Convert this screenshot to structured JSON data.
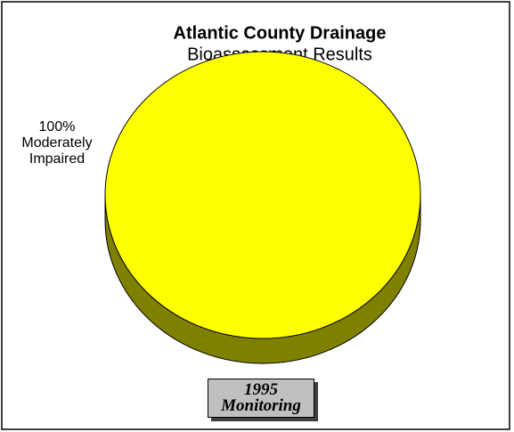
{
  "chart_data": {
    "type": "pie",
    "title": "Atlantic County Drainage",
    "subtitle": "Bioassessment Results",
    "categories": [
      "Moderately Impaired"
    ],
    "values": [
      100
    ],
    "value_labels": [
      "100%"
    ],
    "colors": [
      "#ffff00"
    ],
    "side_colors": [
      "#808000"
    ],
    "annotation": "1995 Monitoring"
  }
}
